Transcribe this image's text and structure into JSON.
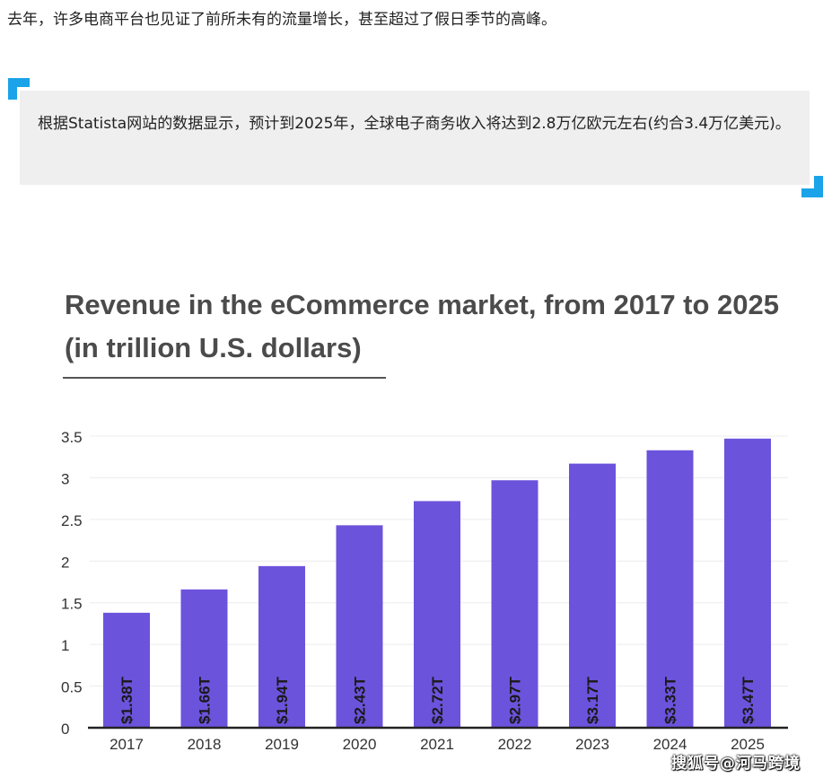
{
  "article": {
    "intro_text": "去年，许多电商平台也见证了前所未有的流量增长，甚至超过了假日季节的高峰。",
    "quote_text": "根据Statista网站的数据显示，预计到2025年，全球电子商务收入将达到2.8万亿欧元左右(约合3.4万亿美元)。"
  },
  "colors": {
    "accent": "#1aa3e8",
    "bar": "#6c53dc",
    "quote_bg": "#efefef"
  },
  "chart_data": {
    "type": "bar",
    "title": "Revenue in the eCommerce market, from 2017 to 2025 (in trillion U.S. dollars)",
    "categories": [
      "2017",
      "2018",
      "2019",
      "2020",
      "2021",
      "2022",
      "2023",
      "2024",
      "2025"
    ],
    "values": [
      1.38,
      1.66,
      1.94,
      2.43,
      2.72,
      2.97,
      3.17,
      3.33,
      3.47
    ],
    "data_labels": [
      "$1.38T",
      "$1.66T",
      "$1.94T",
      "$2.43T",
      "$2.72T",
      "$2.97T",
      "$3.17T",
      "$3.33T",
      "$3.47T"
    ],
    "yticks": [
      "0",
      "0.5",
      "1",
      "1.5",
      "2",
      "2.5",
      "3",
      "3.5"
    ],
    "ylim": [
      0,
      3.5
    ],
    "xlabel": "",
    "ylabel": "",
    "grid": true,
    "legend": "none"
  },
  "watermark": "搜狐号@河马跨境"
}
